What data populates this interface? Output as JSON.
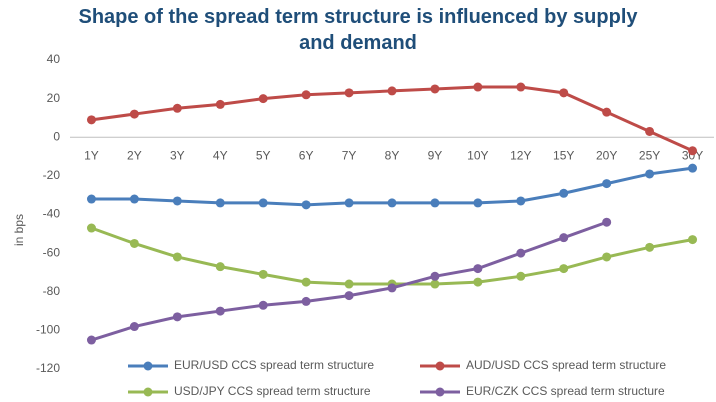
{
  "chart_data": {
    "type": "line",
    "title": "Shape of the spread term structure is influenced by supply and demand",
    "ylabel": "in bps",
    "categories": [
      "1Y",
      "2Y",
      "3Y",
      "4Y",
      "5Y",
      "6Y",
      "7Y",
      "8Y",
      "9Y",
      "10Y",
      "12Y",
      "15Y",
      "20Y",
      "25Y",
      "30Y"
    ],
    "series": [
      {
        "name": "EUR/USD CCS spread term structure",
        "color": "#4a7ebb",
        "values": [
          -32,
          -32,
          -33,
          -34,
          -34,
          -35,
          -34,
          -34,
          -34,
          -34,
          -33,
          -29,
          -24,
          -19,
          -16
        ]
      },
      {
        "name": "AUD/USD CCS spread term structure",
        "color": "#be4b48",
        "values": [
          9,
          12,
          15,
          17,
          20,
          22,
          23,
          24,
          25,
          26,
          26,
          23,
          13,
          3,
          -7
        ]
      },
      {
        "name": "USD/JPY CCS spread term structure",
        "color": "#98b954",
        "values": [
          -47,
          -55,
          -62,
          -67,
          -71,
          -75,
          -76,
          -76,
          -76,
          -75,
          -72,
          -68,
          -62,
          -57,
          -53
        ]
      },
      {
        "name": "EUR/CZK CCS spread term structure",
        "color": "#7d5fa0",
        "values": [
          -105,
          -98,
          -93,
          -90,
          -87,
          -85,
          -82,
          -78,
          -72,
          -68,
          -60,
          -52,
          -44,
          null,
          null
        ]
      }
    ],
    "ylim": [
      -120,
      40
    ],
    "yticks": [
      -120,
      -100,
      -80,
      -60,
      -40,
      -20,
      0,
      20,
      40
    ],
    "grid": false,
    "legend": "bottom"
  }
}
